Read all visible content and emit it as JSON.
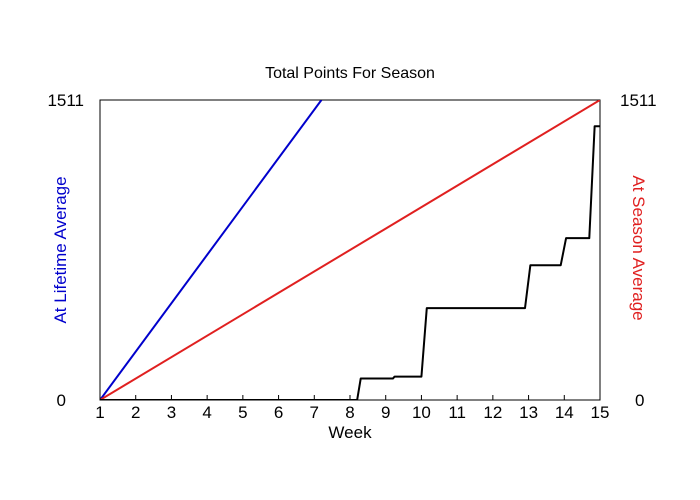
{
  "chart_data": {
    "type": "line",
    "title": "Total Points For Season",
    "xlabel": "Week",
    "ylabel_left": "At Lifetime Average",
    "ylabel_right": "At Season Average",
    "xlim": [
      1,
      15
    ],
    "ylim": [
      0,
      1511
    ],
    "x_ticks": [
      "1",
      "2",
      "3",
      "4",
      "5",
      "6",
      "7",
      "8",
      "9",
      "10",
      "11",
      "12",
      "13",
      "14",
      "15"
    ],
    "y_ticks_left": [
      "0",
      "1511"
    ],
    "y_ticks_right": [
      "0",
      "1511"
    ],
    "grid": false,
    "series": [
      {
        "color": "#0000cc",
        "points": [
          [
            1,
            0
          ],
          [
            7.2,
            1511
          ]
        ]
      },
      {
        "color": "#e02020",
        "points": [
          [
            1,
            0
          ],
          [
            15,
            1511
          ]
        ]
      },
      {
        "color": "#000000",
        "points": [
          [
            1,
            0
          ],
          [
            8.2,
            0
          ],
          [
            8.3,
            108
          ],
          [
            9.2,
            108
          ],
          [
            9.25,
            118
          ],
          [
            10.0,
            118
          ],
          [
            10.15,
            463
          ],
          [
            12.9,
            463
          ],
          [
            13.05,
            679
          ],
          [
            13.9,
            679
          ],
          [
            14.05,
            815
          ],
          [
            14.7,
            815
          ],
          [
            14.85,
            1379
          ],
          [
            15,
            1379
          ]
        ]
      }
    ]
  }
}
